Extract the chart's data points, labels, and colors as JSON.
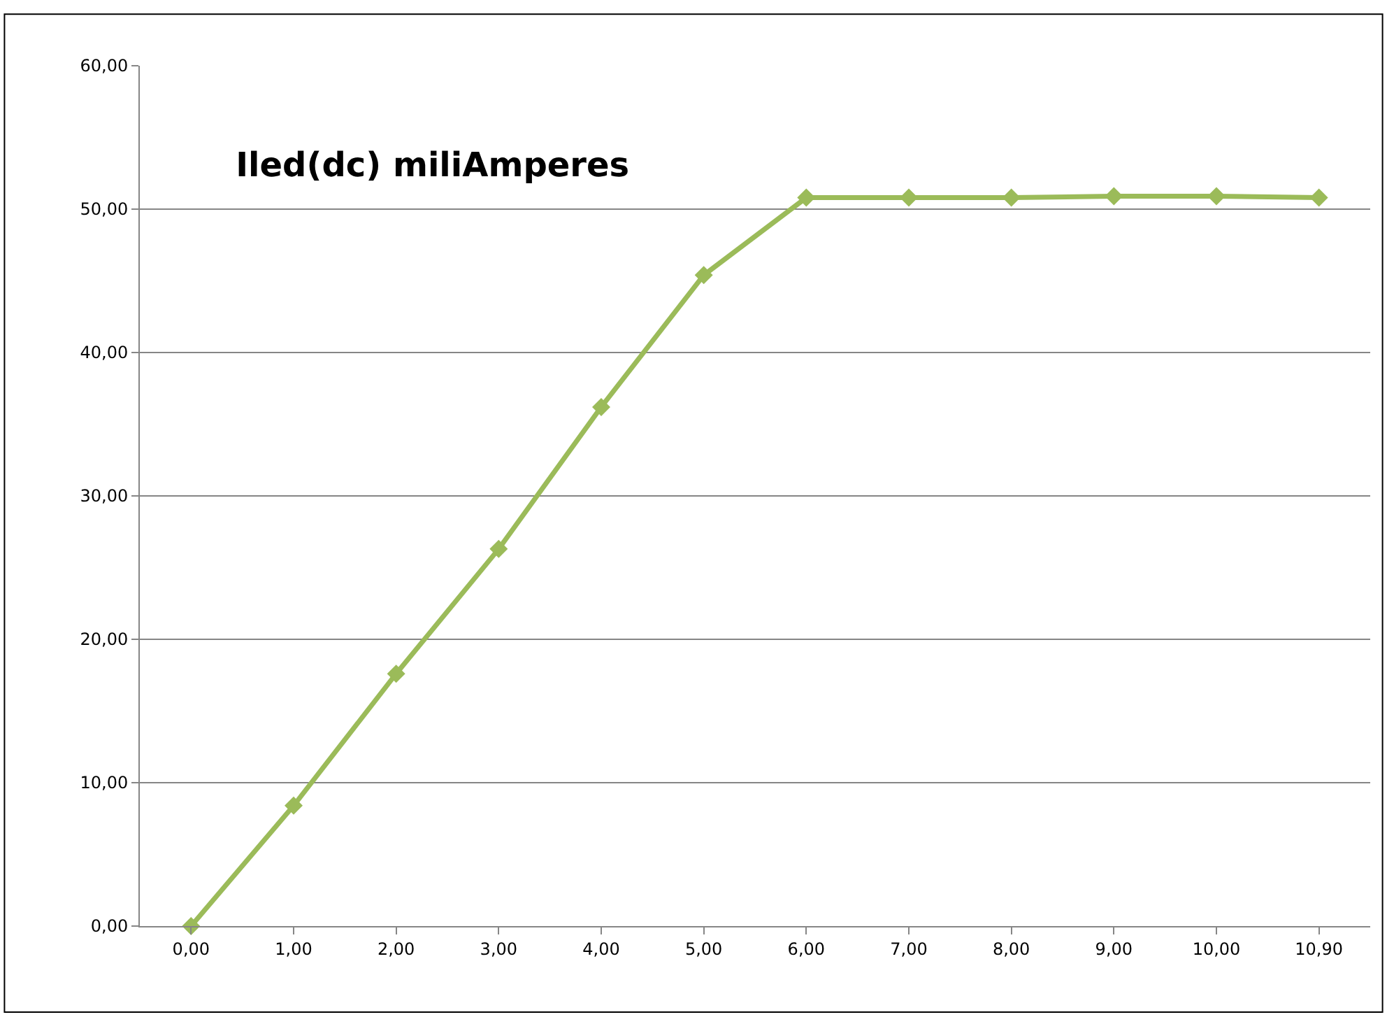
{
  "chart_data": {
    "type": "line",
    "title": "Iled(dc) miliAmperes",
    "categories": [
      "0,00",
      "1,00",
      "2,00",
      "3,00",
      "4,00",
      "5,00",
      "6,00",
      "7,00",
      "8,00",
      "9,00",
      "10,00",
      "10,90"
    ],
    "series": [
      {
        "color": "#9bbb59",
        "values": [
          0,
          8.4,
          17.6,
          26.3,
          36.2,
          45.4,
          50.8,
          50.8,
          50.8,
          50.9,
          50.9,
          50.8
        ]
      }
    ],
    "ylim": [
      0,
      60
    ],
    "yticks": [
      {
        "value": 0,
        "label": "0,00"
      },
      {
        "value": 10,
        "label": "10,00"
      },
      {
        "value": 20,
        "label": "20,00"
      },
      {
        "value": 30,
        "label": "30,00"
      },
      {
        "value": 40,
        "label": "40,00"
      },
      {
        "value": 50,
        "label": "50,00"
      },
      {
        "value": 60,
        "label": "60,00"
      }
    ],
    "grid": "y",
    "marker": "diamond",
    "line_style": "solid"
  }
}
